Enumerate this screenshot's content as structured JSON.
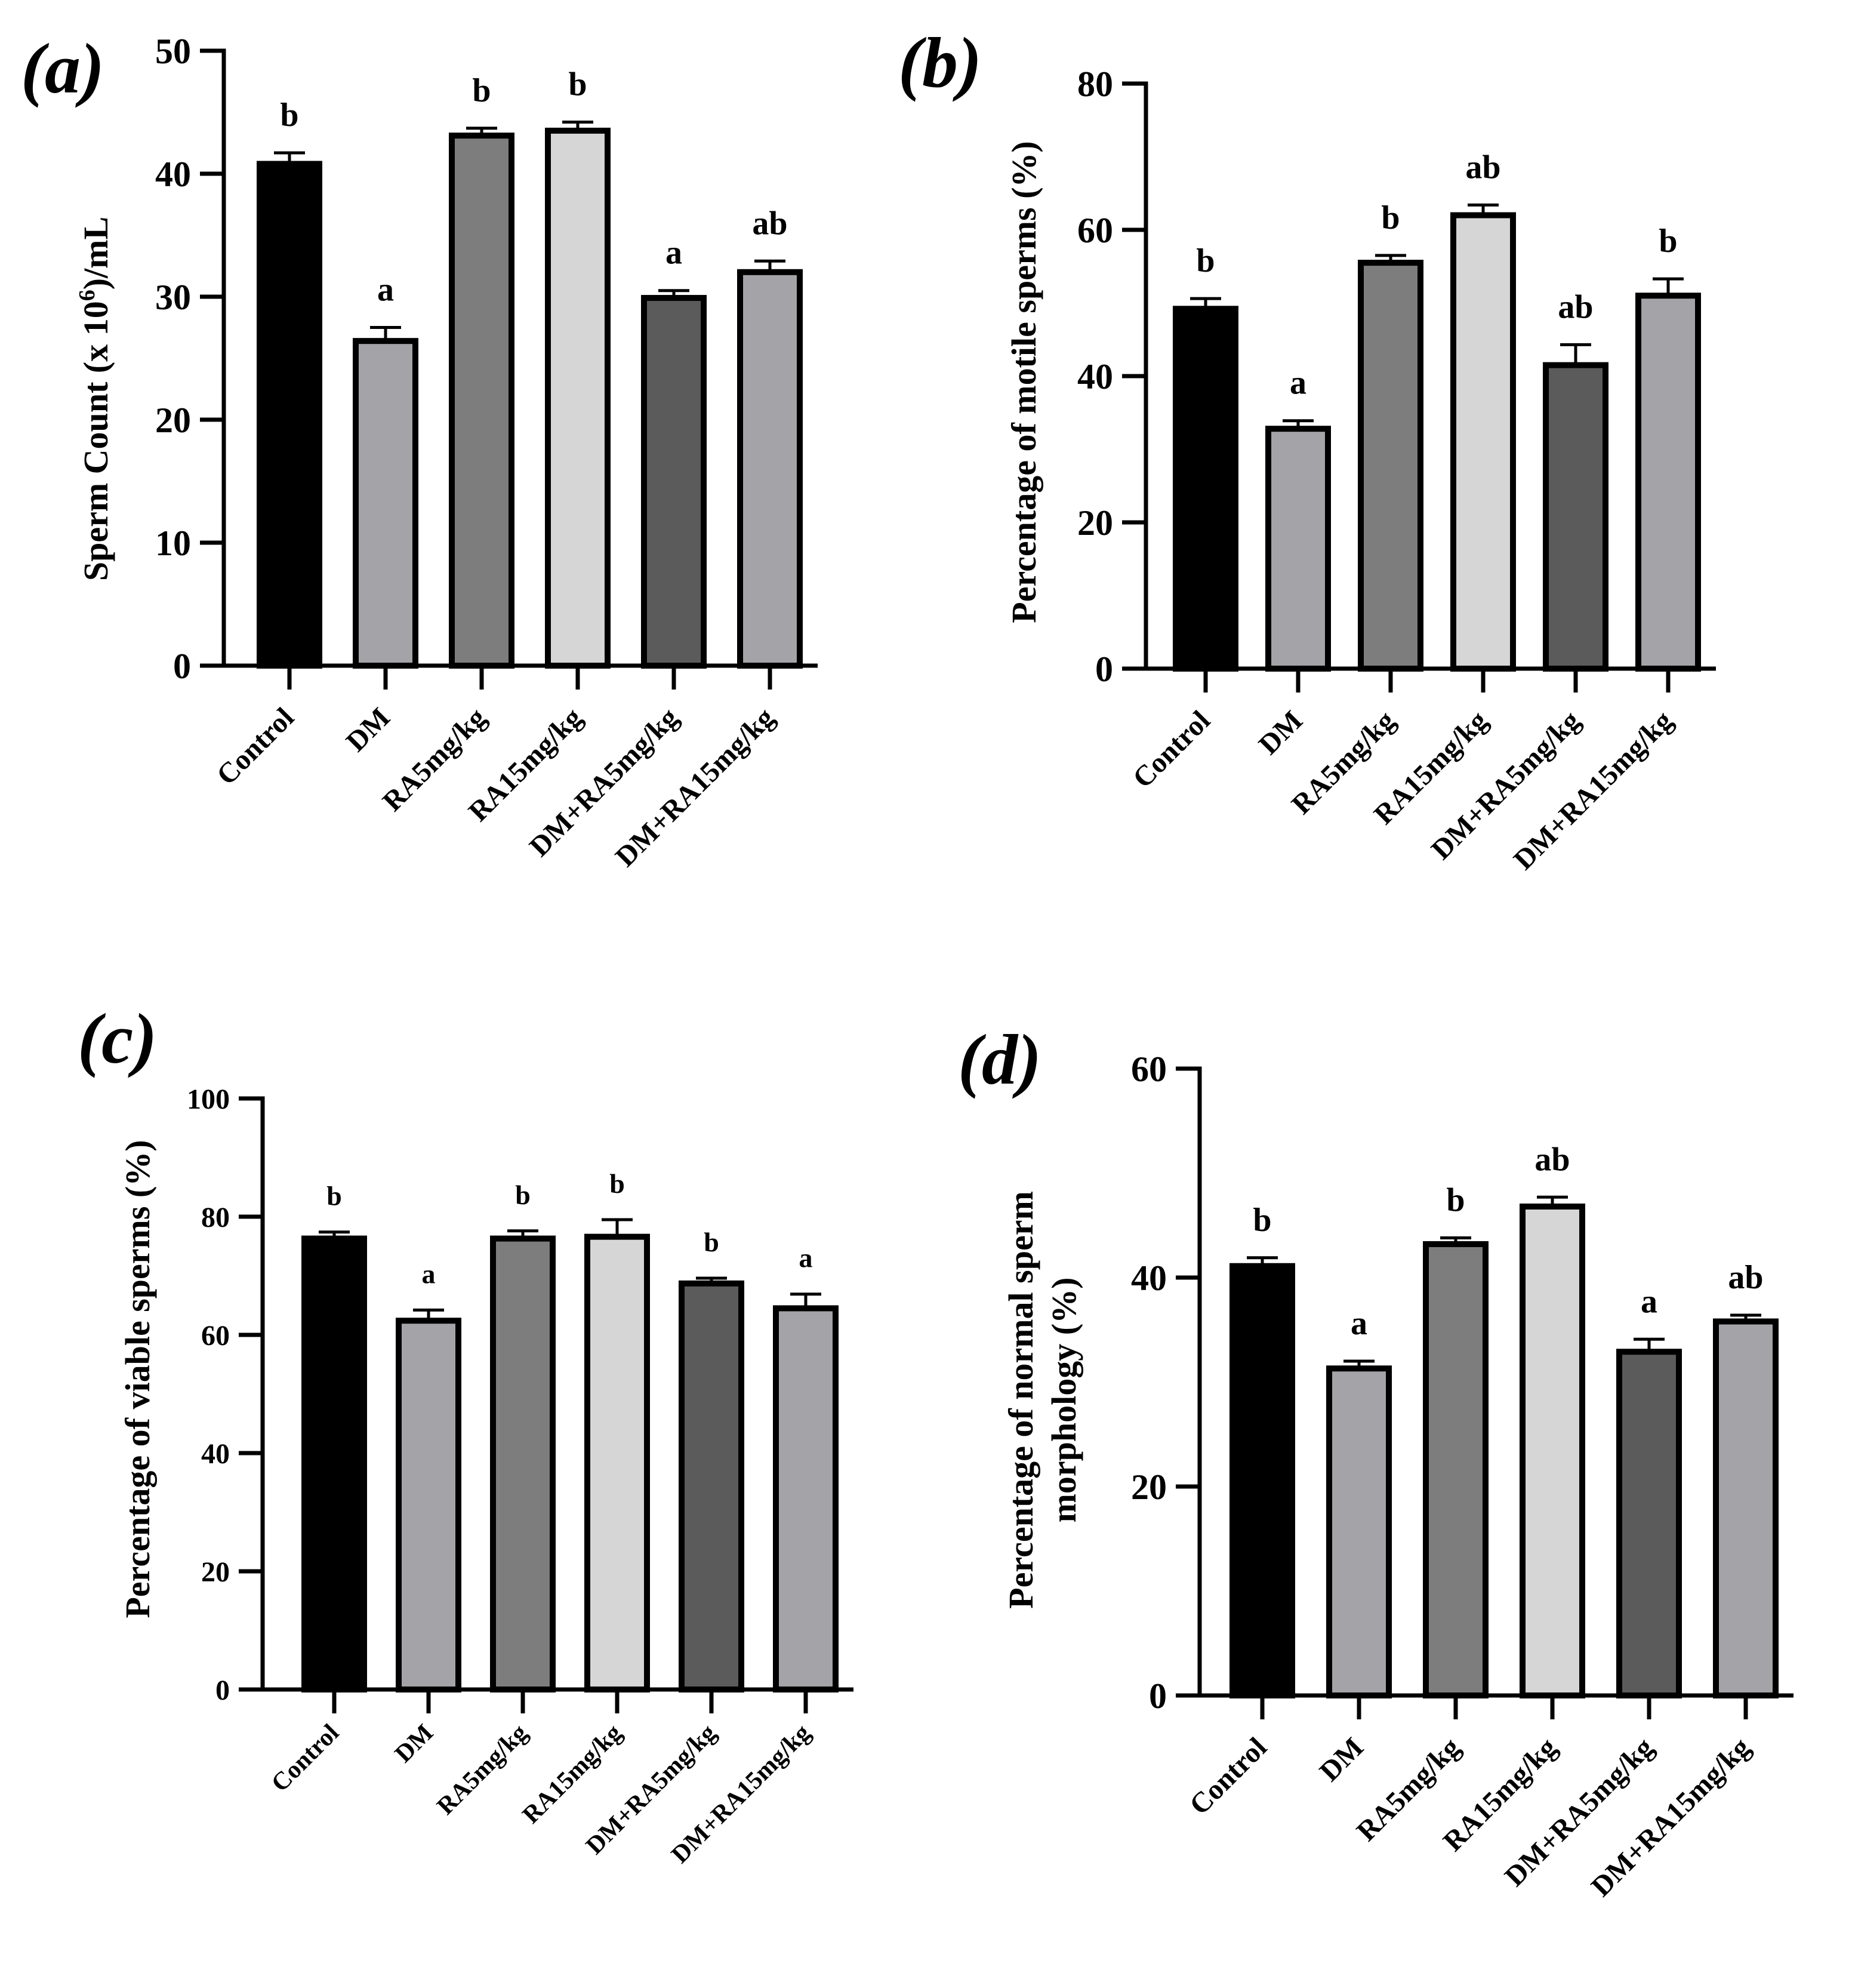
{
  "figure": {
    "panels": [
      "(a)",
      "(b)",
      "(c)",
      "(d)"
    ]
  },
  "chart_data": [
    {
      "panel": "(a)",
      "type": "bar",
      "title": "",
      "xlabel": "",
      "ylabel_main": "Sperm Count (x 10",
      "ylabel_sup": "6",
      "ylabel_tail": ")/mL",
      "ylim": [
        0,
        50
      ],
      "yticks": [
        0,
        10,
        20,
        30,
        40,
        50
      ],
      "categories": [
        "Control",
        "DM",
        "RA5mg/kg",
        "RA15mg/kg",
        "DM+RA5mg/kg",
        "DM+RA15mg/kg"
      ],
      "values": [
        40.8,
        26.4,
        43.1,
        43.5,
        29.9,
        32.0
      ],
      "errors": [
        0.9,
        1.1,
        0.6,
        0.7,
        0.6,
        0.9
      ],
      "significance": [
        "b",
        "a",
        "b",
        "b",
        "a",
        "ab"
      ],
      "colors": [
        "#000000",
        "#a3a3a8",
        "#7d7d7d",
        "#d6d6d6",
        "#5b5b5b",
        "#a3a3a8"
      ]
    },
    {
      "panel": "(b)",
      "type": "bar",
      "title": "",
      "xlabel": "",
      "ylabel": "Percentage of motile sperms (%)",
      "ylim": [
        0,
        80
      ],
      "yticks": [
        0,
        20,
        40,
        60,
        80
      ],
      "categories": [
        "Control",
        "DM",
        "RA5mg/kg",
        "RA15mg/kg",
        "DM+RA5mg/kg",
        "DM+RA15mg/kg"
      ],
      "values": [
        49.2,
        32.8,
        55.5,
        62.0,
        41.5,
        51.0
      ],
      "errors": [
        1.4,
        1.1,
        1.0,
        1.4,
        2.8,
        2.3
      ],
      "significance": [
        "b",
        "a",
        "b",
        "ab",
        "ab",
        "b"
      ],
      "colors": [
        "#000000",
        "#a3a3a8",
        "#7d7d7d",
        "#d6d6d6",
        "#5b5b5b",
        "#a3a3a8"
      ]
    },
    {
      "panel": "(c)",
      "type": "bar",
      "title": "",
      "xlabel": "",
      "ylabel": "Percentage of viable sperms (%)",
      "ylim": [
        0,
        100
      ],
      "yticks": [
        0,
        20,
        40,
        60,
        80,
        100
      ],
      "categories": [
        "Control",
        "DM",
        "RA5mg/kg",
        "RA15mg/kg",
        "DM+RA5mg/kg",
        "DM+RA15mg/kg"
      ],
      "values": [
        76.3,
        62.4,
        76.3,
        76.6,
        68.7,
        64.5
      ],
      "errors": [
        1.1,
        1.8,
        1.3,
        2.9,
        0.9,
        2.4
      ],
      "significance": [
        "b",
        "a",
        "b",
        "b",
        "b",
        "a"
      ],
      "colors": [
        "#000000",
        "#a3a3a8",
        "#7d7d7d",
        "#d6d6d6",
        "#5b5b5b",
        "#a3a3a8"
      ]
    },
    {
      "panel": "(d)",
      "type": "bar",
      "title": "",
      "xlabel": "",
      "ylabel_line1": "Percentage of normal sperm",
      "ylabel_line2": "morphology (%)",
      "ylim": [
        0,
        60
      ],
      "yticks": [
        0,
        20,
        40,
        60
      ],
      "categories": [
        "Control",
        "DM",
        "RA5mg/kg",
        "RA15mg/kg",
        "DM+RA5mg/kg",
        "DM+RA15mg/kg"
      ],
      "values": [
        41.1,
        31.3,
        43.2,
        46.8,
        32.9,
        35.8
      ],
      "errors": [
        0.8,
        0.7,
        0.6,
        0.9,
        1.2,
        0.6
      ],
      "significance": [
        "b",
        "a",
        "b",
        "ab",
        "a",
        "ab"
      ],
      "colors": [
        "#000000",
        "#a3a3a8",
        "#7d7d7d",
        "#d6d6d6",
        "#5b5b5b",
        "#a3a3a8"
      ]
    }
  ]
}
